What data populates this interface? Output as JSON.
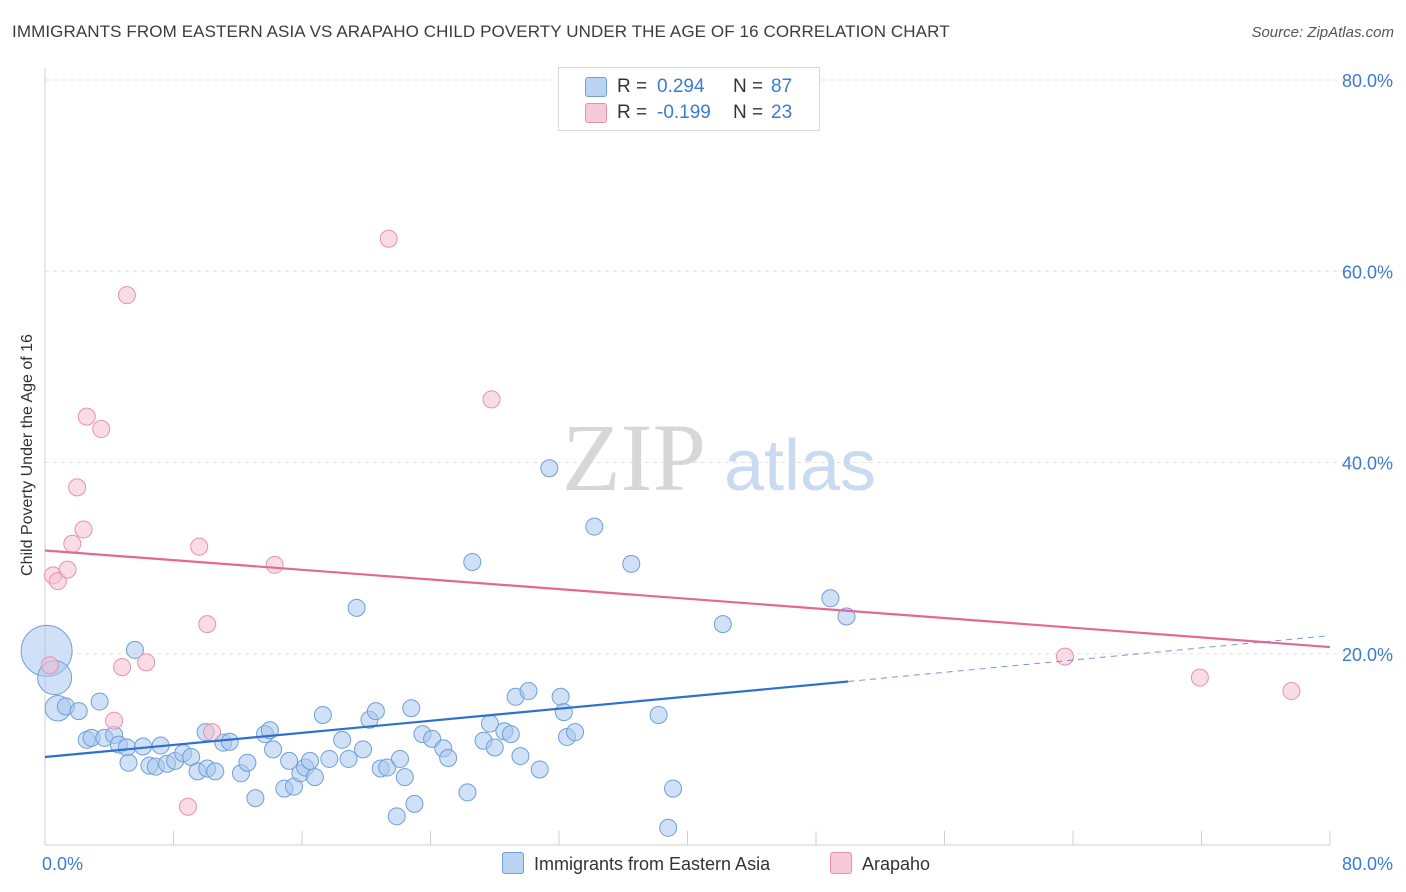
{
  "title": "IMMIGRANTS FROM EASTERN ASIA VS ARAPAHO CHILD POVERTY UNDER THE AGE OF 16 CORRELATION CHART",
  "source": "Source: ZipAtlas.com",
  "watermark": {
    "zip": "ZIP",
    "atlas": "atlas"
  },
  "legend": {
    "rows": [
      {
        "r_label": "R =",
        "r_value": "0.294",
        "n_label": "N =",
        "n_value": "87"
      },
      {
        "r_label": "R =",
        "r_value": "-0.199",
        "n_label": "N =",
        "n_value": "23"
      }
    ]
  },
  "bottom_legend": {
    "series1": "Immigrants from Eastern Asia",
    "series2": "Arapaho"
  },
  "colors": {
    "blue_fill": "#a9c8f0",
    "blue_stroke": "#6f9fd8",
    "blue_line": "#2f6fce",
    "pink_fill": "#f6bfd1",
    "pink_stroke": "#e891ad",
    "pink_line": "#e46892",
    "tick_blue": "#3a7bd5"
  },
  "chart_data": {
    "type": "scatter",
    "title": "IMMIGRANTS FROM EASTERN ASIA VS ARAPAHO CHILD POVERTY UNDER THE AGE OF 16 CORRELATION CHART",
    "xlabel": "",
    "ylabel": "Child Poverty Under the Age of 16",
    "xlim": [
      0,
      80
    ],
    "ylim": [
      0,
      80
    ],
    "x_tick_labels": [
      "0.0%",
      "80.0%"
    ],
    "y_ticks": [
      20,
      40,
      60,
      80
    ],
    "y_tick_labels": [
      "20.0%",
      "40.0%",
      "60.0%",
      "80.0%"
    ],
    "series": [
      {
        "name": "Immigrants from Eastern Asia",
        "r": 0.294,
        "n": 87,
        "trend": {
          "x0": 0,
          "y0": 9.2,
          "x1": 50,
          "y1": 17.1,
          "dash_x1": 80,
          "dash_y1": 21.9
        },
        "points": [
          [
            0.1,
            20.3,
            3
          ],
          [
            0.6,
            17.5,
            2
          ],
          [
            0.8,
            14.3,
            1.5
          ],
          [
            1.3,
            14.5,
            1
          ],
          [
            2.1,
            14.0,
            1
          ],
          [
            2.6,
            11.0,
            1
          ],
          [
            2.9,
            11.2,
            1
          ],
          [
            3.4,
            15.0,
            1
          ],
          [
            3.7,
            11.2,
            1
          ],
          [
            4.3,
            11.5,
            1
          ],
          [
            4.6,
            10.5,
            1
          ],
          [
            5.1,
            10.2,
            1
          ],
          [
            5.2,
            8.6,
            1
          ],
          [
            5.6,
            20.4,
            1
          ],
          [
            6.1,
            10.3,
            1
          ],
          [
            6.5,
            8.3,
            1
          ],
          [
            6.9,
            8.2,
            1
          ],
          [
            7.2,
            10.4,
            1
          ],
          [
            7.6,
            8.5,
            1
          ],
          [
            8.1,
            8.8,
            1
          ],
          [
            8.6,
            9.6,
            1
          ],
          [
            9.1,
            9.2,
            1
          ],
          [
            9.5,
            7.7,
            1
          ],
          [
            10.1,
            8.0,
            1
          ],
          [
            10.0,
            11.8,
            1
          ],
          [
            10.6,
            7.7,
            1
          ],
          [
            11.1,
            10.7,
            1
          ],
          [
            11.5,
            10.8,
            1
          ],
          [
            12.2,
            7.5,
            1
          ],
          [
            12.6,
            8.6,
            1
          ],
          [
            13.1,
            4.9,
            1
          ],
          [
            13.7,
            11.6,
            1
          ],
          [
            14.0,
            12.0,
            1
          ],
          [
            14.2,
            10.0,
            1
          ],
          [
            14.9,
            5.9,
            1
          ],
          [
            15.2,
            8.8,
            1
          ],
          [
            15.5,
            6.1,
            1
          ],
          [
            15.9,
            7.5,
            1
          ],
          [
            16.2,
            8.1,
            1
          ],
          [
            16.5,
            8.8,
            1
          ],
          [
            16.8,
            7.1,
            1
          ],
          [
            17.3,
            13.6,
            1
          ],
          [
            17.7,
            9.0,
            1
          ],
          [
            18.5,
            11.0,
            1
          ],
          [
            18.9,
            9.0,
            1
          ],
          [
            19.4,
            24.8,
            1
          ],
          [
            19.8,
            10.0,
            1
          ],
          [
            20.2,
            13.1,
            1
          ],
          [
            20.6,
            14.0,
            1
          ],
          [
            20.9,
            8.0,
            1
          ],
          [
            21.3,
            8.1,
            1
          ],
          [
            21.9,
            3.0,
            1
          ],
          [
            22.1,
            9.0,
            1
          ],
          [
            22.4,
            7.1,
            1
          ],
          [
            22.8,
            14.3,
            1
          ],
          [
            23.0,
            4.3,
            1
          ],
          [
            23.5,
            11.6,
            1
          ],
          [
            24.1,
            11.1,
            1
          ],
          [
            24.8,
            10.1,
            1
          ],
          [
            25.1,
            9.1,
            1
          ],
          [
            26.3,
            5.5,
            1
          ],
          [
            26.6,
            29.6,
            1
          ],
          [
            27.3,
            10.9,
            1
          ],
          [
            27.7,
            12.7,
            1
          ],
          [
            28.0,
            10.2,
            1
          ],
          [
            28.6,
            11.9,
            1
          ],
          [
            29.0,
            11.6,
            1
          ],
          [
            29.3,
            15.5,
            1
          ],
          [
            29.6,
            9.3,
            1
          ],
          [
            30.1,
            16.1,
            1
          ],
          [
            30.8,
            7.9,
            1
          ],
          [
            31.4,
            39.4,
            1
          ],
          [
            32.1,
            15.5,
            1
          ],
          [
            32.3,
            13.9,
            1
          ],
          [
            32.5,
            11.3,
            1
          ],
          [
            33.0,
            11.8,
            1
          ],
          [
            34.2,
            33.3,
            1
          ],
          [
            36.5,
            29.4,
            1
          ],
          [
            38.2,
            13.6,
            1
          ],
          [
            39.1,
            5.9,
            1
          ],
          [
            38.8,
            1.8,
            1
          ],
          [
            42.2,
            23.1,
            1
          ],
          [
            48.9,
            25.8,
            1
          ],
          [
            49.9,
            23.9,
            1
          ]
        ]
      },
      {
        "name": "Arapaho",
        "r": -0.199,
        "n": 23,
        "trend": {
          "x0": 0,
          "y0": 30.8,
          "x1": 80,
          "y1": 20.7
        },
        "points": [
          [
            0.3,
            18.8
          ],
          [
            0.5,
            28.2
          ],
          [
            0.8,
            27.6
          ],
          [
            1.4,
            28.8
          ],
          [
            1.7,
            31.5
          ],
          [
            2.4,
            33.0
          ],
          [
            2.0,
            37.4
          ],
          [
            2.6,
            44.8
          ],
          [
            3.5,
            43.5
          ],
          [
            4.3,
            13.0
          ],
          [
            4.8,
            18.6
          ],
          [
            5.1,
            57.5
          ],
          [
            6.3,
            19.1
          ],
          [
            8.9,
            4.0
          ],
          [
            9.6,
            31.2
          ],
          [
            10.1,
            23.1
          ],
          [
            10.4,
            11.8
          ],
          [
            14.3,
            29.3
          ],
          [
            21.4,
            63.4
          ],
          [
            27.8,
            46.6
          ],
          [
            63.5,
            19.7
          ],
          [
            71.9,
            17.5
          ],
          [
            77.6,
            16.1
          ]
        ]
      }
    ]
  }
}
